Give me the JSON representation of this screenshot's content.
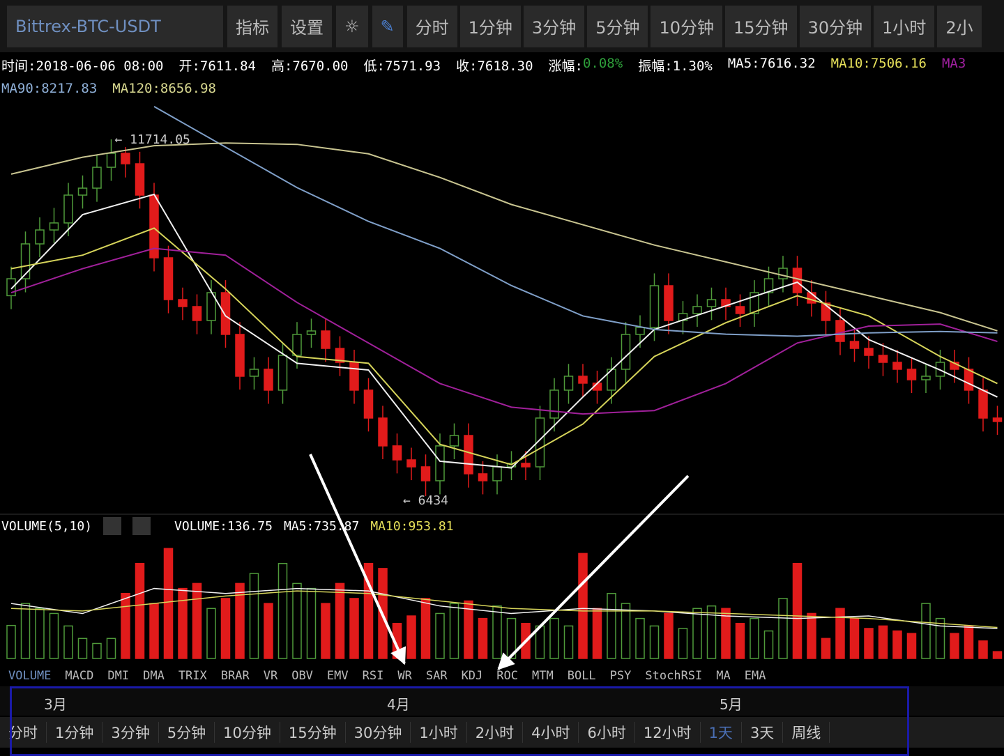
{
  "toolbar": {
    "symbol": "Bittrex-BTC-USDT",
    "buttons": [
      "指标",
      "设置"
    ],
    "periods": [
      "分时",
      "1分钟",
      "3分钟",
      "5分钟",
      "10分钟",
      "15分钟",
      "30分钟",
      "1小时",
      "2小"
    ]
  },
  "info": {
    "row1": [
      {
        "text": "时间:2018-06-06 08:00",
        "color": "#ffffff"
      },
      {
        "text": "开:7611.84",
        "color": "#ffffff"
      },
      {
        "text": "高:7670.00",
        "color": "#ffffff"
      },
      {
        "text": "低:7571.93",
        "color": "#ffffff"
      },
      {
        "text": "收:7618.30",
        "color": "#ffffff"
      },
      {
        "text": "涨幅:",
        "color": "#ffffff"
      },
      {
        "text": "0.08%",
        "color": "#2e9e3a"
      },
      {
        "text": "振幅:1.30%",
        "color": "#ffffff"
      },
      {
        "text": "MA5:7616.32",
        "color": "#ffffff"
      },
      {
        "text": "MA10:7506.16",
        "color": "#e6e05a"
      },
      {
        "text": "MA3",
        "color": "#a020a0"
      }
    ],
    "row2": [
      {
        "text": "MA90:8217.83",
        "color": "#8fb0d8"
      },
      {
        "text": "MA120:8656.98",
        "color": "#d8d890"
      }
    ]
  },
  "price_chart": {
    "high_label": "← 11714.05",
    "low_label": "← 6434",
    "ylim": [
      6248,
      12333
    ],
    "up_color": "#4f9a3a",
    "down_color": "#e11b1b",
    "candles": [
      [
        9400,
        9830,
        9200,
        9651
      ],
      [
        9651,
        10350,
        9450,
        10167
      ],
      [
        10167,
        10560,
        9970,
        10373
      ],
      [
        10373,
        10700,
        10180,
        10477
      ],
      [
        10477,
        11070,
        10280,
        10889
      ],
      [
        10889,
        11180,
        10690,
        10992
      ],
      [
        10992,
        11480,
        10790,
        11301
      ],
      [
        11301,
        11714,
        11100,
        11508
      ],
      [
        11508,
        11600,
        11150,
        11353
      ],
      [
        11353,
        11530,
        10690,
        10889
      ],
      [
        10889,
        11070,
        9760,
        9961
      ],
      [
        9961,
        10140,
        9140,
        9342
      ],
      [
        9342,
        9520,
        9040,
        9239
      ],
      [
        9239,
        9420,
        8830,
        9033
      ],
      [
        9033,
        9630,
        8830,
        9445
      ],
      [
        9445,
        9630,
        8630,
        8827
      ],
      [
        8827,
        9010,
        8010,
        8208
      ],
      [
        8208,
        8490,
        8010,
        8311
      ],
      [
        8311,
        8490,
        7800,
        8002
      ],
      [
        8002,
        8700,
        7800,
        8517
      ],
      [
        8517,
        9010,
        8320,
        8827
      ],
      [
        8827,
        9060,
        8630,
        8878
      ],
      [
        8878,
        9060,
        8420,
        8620
      ],
      [
        8620,
        8800,
        8210,
        8414
      ],
      [
        8414,
        8600,
        7800,
        8002
      ],
      [
        8002,
        8180,
        7390,
        7589
      ],
      [
        7589,
        7770,
        6980,
        7177
      ],
      [
        7177,
        7360,
        6770,
        6970
      ],
      [
        6970,
        7150,
        6670,
        6867
      ],
      [
        6867,
        7050,
        6434,
        6661
      ],
      [
        6661,
        7360,
        6460,
        7177
      ],
      [
        7177,
        7510,
        6980,
        7331
      ],
      [
        7331,
        7510,
        6560,
        6764
      ],
      [
        6764,
        6950,
        6460,
        6661
      ],
      [
        6661,
        7050,
        6460,
        6867
      ],
      [
        6867,
        7100,
        6670,
        6919
      ],
      [
        6919,
        7100,
        6670,
        6867
      ],
      [
        6867,
        7770,
        6670,
        7589
      ],
      [
        7589,
        8180,
        7390,
        8002
      ],
      [
        8002,
        8390,
        7800,
        8208
      ],
      [
        8208,
        8390,
        7900,
        8105
      ],
      [
        8105,
        8290,
        7800,
        8002
      ],
      [
        8002,
        8490,
        7800,
        8311
      ],
      [
        8311,
        9010,
        8110,
        8827
      ],
      [
        8827,
        9110,
        8630,
        8930
      ],
      [
        8930,
        9730,
        8730,
        9548
      ],
      [
        9548,
        9730,
        8830,
        9033
      ],
      [
        9033,
        9320,
        8830,
        9136
      ],
      [
        9136,
        9420,
        8940,
        9239
      ],
      [
        9239,
        9520,
        9040,
        9342
      ],
      [
        9342,
        9520,
        9040,
        9239
      ],
      [
        9239,
        9420,
        8940,
        9136
      ],
      [
        9136,
        9630,
        8940,
        9445
      ],
      [
        9445,
        9830,
        9250,
        9651
      ],
      [
        9651,
        9990,
        9450,
        9806
      ],
      [
        9806,
        9990,
        9250,
        9445
      ],
      [
        9445,
        9630,
        9090,
        9291
      ],
      [
        9291,
        9470,
        8830,
        9033
      ],
      [
        9033,
        9210,
        8520,
        8723
      ],
      [
        8723,
        8900,
        8420,
        8620
      ],
      [
        8620,
        8800,
        8320,
        8517
      ],
      [
        8517,
        8700,
        8210,
        8414
      ],
      [
        8414,
        8600,
        8110,
        8311
      ],
      [
        8311,
        8490,
        7960,
        8156
      ],
      [
        8156,
        8390,
        7960,
        8208
      ],
      [
        8208,
        8600,
        8010,
        8414
      ],
      [
        8414,
        8600,
        8110,
        8311
      ],
      [
        8311,
        8490,
        7800,
        8002
      ],
      [
        8002,
        8180,
        7390,
        7589
      ],
      [
        7589,
        7770,
        7340,
        7538
      ]
    ],
    "line_x": [
      0,
      5,
      10,
      15,
      20,
      25,
      30,
      35,
      40,
      45,
      50,
      55,
      60,
      65,
      69
    ],
    "lines": [
      {
        "color": "#f0f0f0",
        "values": [
          9500,
          10600,
          10900,
          9100,
          8400,
          8300,
          6950,
          6850,
          7900,
          8900,
          9250,
          9600,
          8750,
          8300,
          7900
        ]
      },
      {
        "color": "#d6d45a",
        "values": [
          9800,
          10000,
          10400,
          9500,
          8500,
          8400,
          7200,
          6900,
          7500,
          8500,
          9000,
          9400,
          9100,
          8500,
          8100
        ]
      },
      {
        "color": "#a0209a",
        "values": [
          9445,
          9800,
          10100,
          10000,
          9300,
          8700,
          8100,
          7750,
          7650,
          7700,
          8100,
          8700,
          8950,
          8980,
          8723
        ]
      },
      {
        "color": "#7f9fc8",
        "values": [
          null,
          null,
          12200,
          11600,
          11000,
          10500,
          10100,
          9550,
          9100,
          8900,
          8830,
          8800,
          8850,
          8870,
          8850
        ]
      },
      {
        "color": "#c8c490",
        "values": [
          11200,
          11450,
          11620,
          11660,
          11640,
          11500,
          11150,
          10750,
          10450,
          10150,
          9900,
          9650,
          9400,
          9150,
          8880
        ]
      }
    ]
  },
  "volume_chart": {
    "header": {
      "name": "VOLUME(5,10)",
      "volume": "VOLUME:136.75",
      "ma5": "MA5:735.87",
      "ma10": "MA10:953.81"
    },
    "ylim": [
      0,
      2300
    ],
    "values": [
      660,
      1100,
      1000,
      900,
      650,
      400,
      300,
      400,
      1300,
      1900,
      1100,
      2200,
      1400,
      1500,
      1000,
      1200,
      1500,
      1700,
      1100,
      1900,
      1500,
      1400,
      1100,
      1500,
      1200,
      1900,
      1800,
      700,
      850,
      1200,
      900,
      1100,
      1150,
      800,
      1050,
      800,
      700,
      650,
      800,
      650,
      2100,
      1000,
      1300,
      1100,
      800,
      650,
      900,
      600,
      1000,
      1050,
      1000,
      700,
      800,
      550,
      1200,
      1900,
      900,
      400,
      1000,
      800,
      600,
      650,
      550,
      500,
      1100,
      800,
      500,
      650,
      350,
      136.75
    ],
    "lines": [
      {
        "color": "#f0f0f0",
        "values": [
          1100,
          900,
          1400,
          1300,
          1400,
          1350,
          1050,
          900,
          1000,
          950,
          850,
          800,
          850,
          650,
          600
        ]
      },
      {
        "color": "#d6d45a",
        "values": [
          1000,
          950,
          1100,
          1250,
          1350,
          1300,
          1150,
          1000,
          950,
          950,
          900,
          850,
          800,
          700,
          620
        ]
      }
    ]
  },
  "indicators": [
    "VOLUME",
    "MACD",
    "DMI",
    "DMA",
    "TRIX",
    "BRAR",
    "VR",
    "OBV",
    "EMV",
    "RSI",
    "WR",
    "SAR",
    "KDJ",
    "ROC",
    "MTM",
    "BOLL",
    "PSY",
    "StochRSI",
    "MA",
    "EMA"
  ],
  "months": [
    "3月",
    "4月",
    "5月"
  ],
  "periods": [
    "分时",
    "1分钟",
    "3分钟",
    "5分钟",
    "10分钟",
    "15分钟",
    "30分钟",
    "1小时",
    "2小时",
    "4小时",
    "6小时",
    "12小时",
    "1天",
    "3天",
    "周线"
  ]
}
